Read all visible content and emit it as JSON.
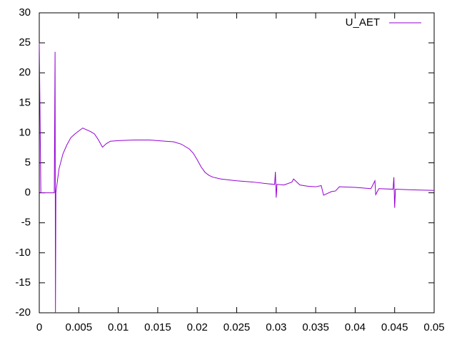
{
  "chart_data": {
    "type": "line",
    "x": [
      0,
      0.0002,
      0.001,
      0.0019,
      0.002,
      0.00205,
      0.0021,
      0.0023,
      0.0025,
      0.003,
      0.0035,
      0.004,
      0.0045,
      0.005,
      0.0055,
      0.006,
      0.0065,
      0.007,
      0.0075,
      0.008,
      0.0085,
      0.009,
      0.01,
      0.012,
      0.014,
      0.016,
      0.017,
      0.018,
      0.019,
      0.0195,
      0.02,
      0.0205,
      0.021,
      0.0215,
      0.022,
      0.023,
      0.025,
      0.027,
      0.029,
      0.0298,
      0.0299,
      0.03,
      0.0301,
      0.031,
      0.032,
      0.0322,
      0.033,
      0.034,
      0.035,
      0.0357,
      0.036,
      0.037,
      0.0375,
      0.038,
      0.04,
      0.042,
      0.0425,
      0.0426,
      0.043,
      0.0448,
      0.0449,
      0.045,
      0.0451,
      0.047,
      0.05
    ],
    "series": [
      {
        "name": "U_AET",
        "color": "#9400d3",
        "values": [
          25,
          0,
          0,
          0,
          23.5,
          -20,
          0,
          2,
          4,
          6.5,
          8,
          9.2,
          9.8,
          10.3,
          10.8,
          10.5,
          10.2,
          9.8,
          8.8,
          7.6,
          8.2,
          8.6,
          8.7,
          8.8,
          8.8,
          8.6,
          8.5,
          8.1,
          7.3,
          6.6,
          5.5,
          4.3,
          3.4,
          2.9,
          2.6,
          2.3,
          2,
          1.8,
          1.5,
          1.4,
          3.5,
          -0.8,
          1.4,
          1.3,
          1.8,
          2.3,
          1.3,
          1.1,
          1.0,
          1.2,
          -0.4,
          0.2,
          0.3,
          1.0,
          0.9,
          0.7,
          2.0,
          -0.3,
          0.7,
          0.6,
          2.6,
          -2.5,
          0.6,
          0.5,
          0.4
        ]
      }
    ],
    "xlim": [
      0,
      0.05
    ],
    "xticks": [
      0,
      0.005,
      0.01,
      0.015,
      0.02,
      0.025,
      0.03,
      0.035,
      0.04,
      0.045,
      0.05
    ],
    "ylim": [
      -20,
      30
    ],
    "yticks": [
      -20,
      -15,
      -10,
      -5,
      0,
      5,
      10,
      15,
      20,
      25,
      30
    ],
    "legend": "top-right"
  }
}
